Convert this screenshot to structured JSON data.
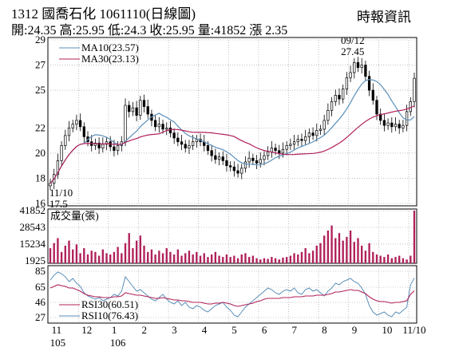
{
  "header": {
    "title": "1312  國喬石化  1061110(日線圖)",
    "source": "時報資訊",
    "quote": "開:24.35 高:25.95 低:24.3 收:25.95 量:41852 漲 2.35"
  },
  "colors": {
    "ma10": "#5b8fb9",
    "ma30": "#b0205a",
    "volume": "#b0205a",
    "rsi30": "#b0205a",
    "rsi10": "#5b8fb9",
    "candle": "#000000",
    "grid": "#9a9a9a"
  },
  "chart_data": [
    {
      "type": "candlestick",
      "panel": "price",
      "ylim": [
        16,
        29
      ],
      "yticks": [
        16,
        18,
        20,
        22,
        25,
        27,
        29
      ],
      "legend": [
        "MA10(23.57)",
        "MA30(23.13)"
      ],
      "annotations": [
        {
          "label": "09/12",
          "value": "27.45",
          "note": "high"
        },
        {
          "label": "11/10",
          "value": "17.5",
          "note": "low"
        }
      ],
      "months": [
        "11",
        "12",
        "1",
        "2",
        "3",
        "4",
        "5",
        "6",
        "7",
        "8",
        "9",
        "10",
        "11/10"
      ],
      "month_years": [
        "105",
        "",
        "106",
        "",
        "",
        "",
        "",
        "",
        "",
        "",
        "",
        "",
        ""
      ],
      "month_closes": [
        [
          17.6,
          18.3,
          19.4,
          20.6,
          21.4,
          22.0,
          22.3,
          22.6
        ],
        [
          22.1,
          21.3,
          20.9,
          20.6,
          20.8,
          20.4,
          20.7,
          20.9
        ],
        [
          20.5,
          20.2,
          20.6,
          20.9,
          23.8,
          23.3,
          23.6,
          23.0
        ],
        [
          24.2,
          23.7,
          23.1,
          22.6,
          22.1,
          22.3,
          21.9,
          22.0
        ],
        [
          21.6,
          21.2,
          20.9,
          20.7,
          20.4,
          20.6,
          20.9,
          21.1
        ],
        [
          20.9,
          20.6,
          20.2,
          19.8,
          19.5,
          19.7,
          19.4,
          19.0
        ],
        [
          18.9,
          18.6,
          18.4,
          18.8,
          19.3,
          19.6,
          19.4,
          19.2
        ],
        [
          19.5,
          19.8,
          20.1,
          20.4,
          20.2,
          20.0,
          20.3,
          20.6
        ],
        [
          20.7,
          20.9,
          21.1,
          21.0,
          21.3,
          21.6,
          21.4,
          21.8
        ],
        [
          21.9,
          22.6,
          23.4,
          24.1,
          24.6,
          24.3,
          25.1,
          26.0
        ],
        [
          26.4,
          27.2,
          26.8,
          27.0,
          26.1,
          25.0,
          24.2,
          23.1
        ],
        [
          22.6,
          22.2,
          22.4,
          22.1,
          22.3,
          22.0,
          22.2,
          23.3
        ],
        [
          24.1,
          25.95
        ]
      ]
    },
    {
      "type": "bar",
      "panel": "volume",
      "title": "成交量(張)",
      "yticks": [
        1925,
        15234,
        28543,
        41852
      ],
      "ylim": [
        0,
        41852
      ],
      "month_values": [
        [
          12000,
          16000,
          20000,
          9000,
          14000,
          18000,
          11000,
          15000
        ],
        [
          8000,
          12000,
          7000,
          10000,
          9000,
          6000,
          11000,
          8000
        ],
        [
          7000,
          9000,
          13000,
          8000,
          16000,
          24000,
          12000,
          18000
        ],
        [
          22000,
          14000,
          9000,
          11000,
          7000,
          10000,
          8000,
          12000
        ],
        [
          9000,
          7000,
          11000,
          6000,
          8000,
          10000,
          7000,
          9000
        ],
        [
          6000,
          8000,
          5000,
          7000,
          9000,
          6000,
          5000,
          7000
        ],
        [
          5000,
          6000,
          4000,
          7000,
          8000,
          5000,
          6000,
          4000
        ],
        [
          3000,
          4000,
          3500,
          5000,
          4000,
          3000,
          4500,
          5000
        ],
        [
          6000,
          8000,
          7000,
          9000,
          12000,
          8000,
          10000,
          14000
        ],
        [
          16000,
          22000,
          26000,
          30000,
          20000,
          24000,
          18000,
          21000
        ],
        [
          26000,
          17000,
          20000,
          14000,
          10000,
          16000,
          9000,
          7000
        ],
        [
          6000,
          5000,
          7000,
          4000,
          5000,
          6000,
          4000,
          3000
        ],
        [
          6000,
          41852
        ]
      ]
    },
    {
      "type": "line",
      "panel": "rsi",
      "yticks": [
        27,
        46,
        65,
        85
      ],
      "ylim": [
        20,
        92
      ],
      "legend": [
        "RSI30(60.51)",
        "RSI10(76.43)"
      ],
      "month_rsi10": [
        [
          74,
          80,
          84,
          82,
          78,
          72,
          76,
          70
        ],
        [
          66,
          58,
          54,
          52,
          50,
          52,
          48,
          50
        ],
        [
          52,
          56,
          54,
          60,
          78,
          72,
          66,
          60
        ],
        [
          62,
          58,
          54,
          50,
          48,
          52,
          56,
          50
        ],
        [
          46,
          44,
          48,
          42,
          46,
          40,
          38,
          42
        ],
        [
          40,
          36,
          34,
          38,
          42,
          44,
          46,
          40
        ],
        [
          36,
          30,
          28,
          34,
          40,
          44,
          48,
          52
        ],
        [
          56,
          60,
          64,
          62,
          58,
          56,
          60,
          62
        ],
        [
          60,
          64,
          58,
          56,
          62,
          64,
          60,
          62
        ],
        [
          58,
          54,
          60,
          64,
          70,
          68,
          72,
          74
        ],
        [
          76,
          72,
          70,
          64,
          56,
          42,
          34,
          30
        ],
        [
          32,
          34,
          30,
          28,
          34,
          32,
          36,
          40
        ],
        [
          68,
          76.43
        ]
      ],
      "month_rsi30": [
        [
          64,
          66,
          68,
          67,
          66,
          64,
          64,
          62
        ],
        [
          60,
          57,
          55,
          54,
          53,
          53,
          52,
          52
        ],
        [
          52,
          53,
          53,
          54,
          58,
          57,
          56,
          55
        ],
        [
          55,
          54,
          53,
          52,
          51,
          51,
          52,
          51
        ],
        [
          50,
          49,
          49,
          48,
          48,
          47,
          46,
          46
        ],
        [
          46,
          45,
          44,
          44,
          45,
          45,
          46,
          45
        ],
        [
          44,
          42,
          41,
          42,
          43,
          44,
          45,
          47
        ],
        [
          48,
          50,
          51,
          51,
          51,
          51,
          52,
          52
        ],
        [
          52,
          53,
          53,
          53,
          54,
          54,
          54,
          55
        ],
        [
          55,
          55,
          56,
          57,
          59,
          59,
          60,
          61
        ],
        [
          62,
          61,
          61,
          59,
          57,
          53,
          50,
          48
        ],
        [
          47,
          47,
          46,
          45,
          46,
          46,
          47,
          48
        ],
        [
          56,
          60.51
        ]
      ]
    }
  ]
}
